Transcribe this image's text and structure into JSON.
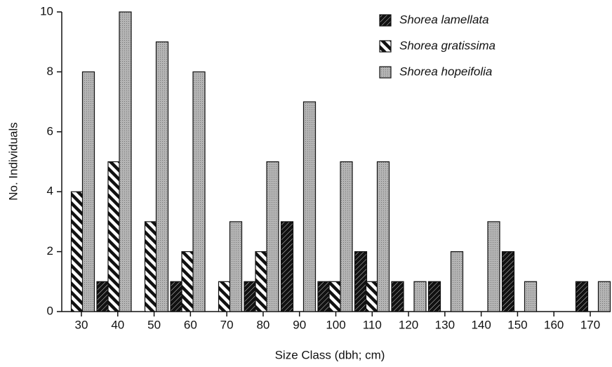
{
  "chart_data": {
    "type": "bar",
    "categories": [
      "30",
      "40",
      "50",
      "60",
      "70",
      "80",
      "90",
      "100",
      "110",
      "120",
      "130",
      "140",
      "150",
      "160",
      "170"
    ],
    "series": [
      {
        "name": "Shorea lamellata",
        "color": "#111111",
        "values": [
          0,
          1,
          0,
          1,
          0,
          1,
          3,
          1,
          2,
          1,
          1,
          0,
          2,
          0,
          1
        ]
      },
      {
        "name": "Shorea gratissima",
        "color": "#ffffff",
        "values": [
          4,
          5,
          3,
          2,
          1,
          2,
          0,
          1,
          1,
          0,
          0,
          0,
          0,
          0,
          0
        ]
      },
      {
        "name": "Shorea hopeifolia",
        "color": "#b4b4b4",
        "values": [
          8,
          10,
          9,
          8,
          3,
          5,
          7,
          5,
          5,
          1,
          2,
          3,
          1,
          0,
          1
        ]
      }
    ],
    "x_label": "Size Class (dbh; cm)",
    "y_label": "No. Individuals",
    "ylim": [
      0,
      10
    ],
    "yticks": [
      0,
      2,
      4,
      6,
      8,
      10
    ],
    "grid": false,
    "legend": "top-right"
  }
}
